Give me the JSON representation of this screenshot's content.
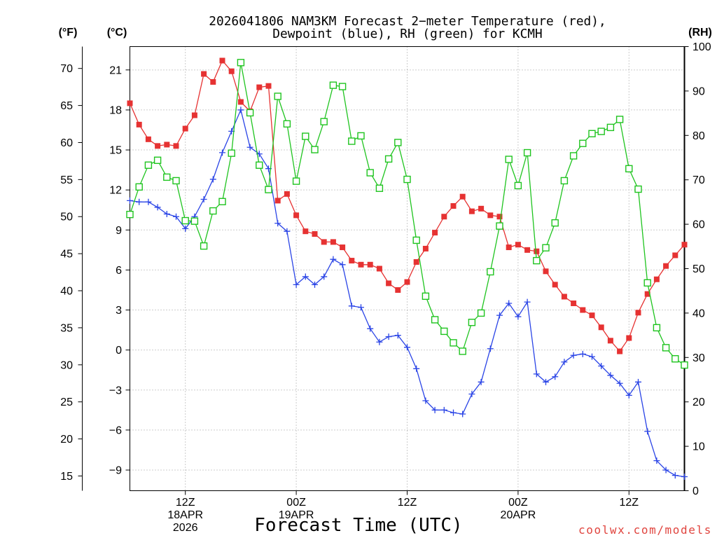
{
  "footer": "coolwx.com/models",
  "colors": {
    "background": "#ffffff",
    "axis": "#000000",
    "grid": "#9a9a9a",
    "footer": "#e0443e"
  },
  "chart_data": {
    "type": "line",
    "title": [
      "2026041806 NAM3KM Forecast 2−meter Temperature (red),",
      "Dewpoint (blue), RH (green) for KCMH"
    ],
    "xlabel": "Forecast Time (UTC)",
    "xlim": [
      0,
      60
    ],
    "grid": true,
    "x_ticks": [
      {
        "value": 6,
        "labels": [
          "12Z",
          "18APR",
          "2026"
        ]
      },
      {
        "value": 18,
        "labels": [
          "00Z",
          "19APR"
        ]
      },
      {
        "value": 30,
        "labels": [
          "12Z"
        ]
      },
      {
        "value": 42,
        "labels": [
          "00Z",
          "20APR"
        ]
      },
      {
        "value": 54,
        "labels": [
          "12Z"
        ]
      }
    ],
    "y_axes": {
      "fahrenheit": {
        "label": "(°F)",
        "ticks": [
          {
            "value": 15,
            "label": "15"
          },
          {
            "value": 20,
            "label": "20"
          },
          {
            "value": 25,
            "label": "25"
          },
          {
            "value": 30,
            "label": "30"
          },
          {
            "value": 35,
            "label": "35"
          },
          {
            "value": 40,
            "label": "40"
          },
          {
            "value": 45,
            "label": "45"
          },
          {
            "value": 50,
            "label": "50"
          },
          {
            "value": 55,
            "label": "55"
          },
          {
            "value": 60,
            "label": "60"
          },
          {
            "value": 65,
            "label": "65"
          },
          {
            "value": 70,
            "label": "70"
          }
        ]
      },
      "celsius": {
        "label": "(°C)",
        "lim": [
          -10.55,
          22.75
        ],
        "ticks": [
          {
            "value": -9,
            "label": "−9"
          },
          {
            "value": -6,
            "label": "−6"
          },
          {
            "value": -3,
            "label": "−3"
          },
          {
            "value": 0,
            "label": "0"
          },
          {
            "value": 3,
            "label": "3"
          },
          {
            "value": 6,
            "label": "6"
          },
          {
            "value": 9,
            "label": "9"
          },
          {
            "value": 12,
            "label": "12"
          },
          {
            "value": 15,
            "label": "15"
          },
          {
            "value": 18,
            "label": "18"
          },
          {
            "value": 21,
            "label": "21"
          }
        ]
      },
      "rh": {
        "label": "(RH)",
        "lim": [
          0,
          100
        ],
        "ticks": [
          {
            "value": 0,
            "label": "0"
          },
          {
            "value": 10,
            "label": "10"
          },
          {
            "value": 20,
            "label": "20"
          },
          {
            "value": 30,
            "label": "30"
          },
          {
            "value": 40,
            "label": "40"
          },
          {
            "value": 50,
            "label": "50"
          },
          {
            "value": 60,
            "label": "60"
          },
          {
            "value": 70,
            "label": "70"
          },
          {
            "value": 80,
            "label": "80"
          },
          {
            "value": 90,
            "label": "90"
          },
          {
            "value": 100,
            "label": "100"
          }
        ]
      }
    },
    "x": [
      0,
      1,
      2,
      3,
      4,
      5,
      6,
      7,
      8,
      9,
      10,
      11,
      12,
      13,
      14,
      15,
      16,
      17,
      18,
      19,
      20,
      21,
      22,
      23,
      24,
      25,
      26,
      27,
      28,
      29,
      30,
      31,
      32,
      33,
      34,
      35,
      36,
      37,
      38,
      39,
      40,
      41,
      42,
      43,
      44,
      45,
      46,
      47,
      48,
      49,
      50,
      51,
      52,
      53,
      54,
      55,
      56,
      57,
      58,
      59,
      60
    ],
    "series": {
      "temperature": {
        "color": "#e63232",
        "values": [
          18.5,
          16.9,
          15.8,
          15.3,
          15.4,
          15.3,
          16.6,
          17.6,
          20.7,
          20.1,
          21.7,
          20.9,
          18.6,
          17.9,
          19.7,
          19.8,
          11.2,
          11.7,
          10.1,
          8.9,
          8.7,
          8.1,
          8.1,
          7.7,
          6.7,
          6.4,
          6.4,
          6.1,
          5.0,
          4.5,
          5.1,
          6.6,
          7.6,
          8.8,
          10.0,
          10.8,
          11.5,
          10.4,
          10.6,
          10.1,
          10.0,
          7.7,
          7.9,
          7.5,
          7.4,
          5.9,
          4.9,
          4.0,
          3.5,
          3.0,
          2.6,
          1.7,
          0.7,
          -0.1,
          0.9,
          2.8,
          4.2,
          5.3,
          6.3,
          7.1,
          7.9
        ]
      },
      "dewpoint": {
        "color": "#2a44e6",
        "values": [
          11.2,
          11.1,
          11.1,
          10.7,
          10.2,
          10.0,
          9.1,
          10.0,
          11.3,
          12.8,
          14.8,
          16.4,
          18.0,
          15.2,
          14.7,
          13.6,
          9.5,
          8.9,
          4.9,
          5.5,
          4.9,
          5.5,
          6.8,
          6.4,
          3.3,
          3.2,
          1.6,
          0.6,
          1.0,
          1.1,
          0.2,
          -1.4,
          -3.8,
          -4.5,
          -4.5,
          -4.7,
          -4.8,
          -3.3,
          -2.4,
          0.1,
          2.6,
          3.5,
          2.5,
          3.6,
          -1.8,
          -2.4,
          -2.0,
          -0.9,
          -0.4,
          -0.3,
          -0.5,
          -1.2,
          -1.9,
          -2.5,
          -3.4,
          -2.4,
          -6.1,
          -8.3,
          -9.0,
          -9.4,
          -9.5
        ]
      },
      "rh": {
        "color": "#1fc41f",
        "values": [
          62.2,
          68.4,
          73.3,
          74.4,
          70.6,
          69.8,
          60.8,
          60.7,
          55.1,
          63.0,
          65.1,
          76.0,
          96.4,
          85.1,
          73.3,
          67.8,
          88.8,
          82.6,
          69.7,
          79.8,
          76.8,
          83.1,
          91.3,
          91.0,
          78.7,
          79.9,
          71.6,
          68.1,
          74.7,
          78.4,
          70.1,
          56.4,
          43.8,
          38.5,
          35.9,
          33.3,
          31.4,
          37.9,
          40.0,
          49.3,
          59.6,
          74.6,
          68.7,
          76.1,
          51.8,
          54.7,
          60.3,
          69.8,
          75.4,
          78.2,
          80.4,
          80.9,
          81.8,
          83.6,
          72.5,
          67.9,
          46.8,
          36.7,
          32.2,
          29.7,
          28.3
        ]
      }
    }
  }
}
